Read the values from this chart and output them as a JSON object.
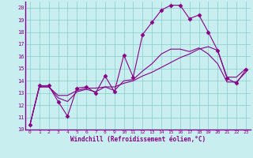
{
  "xlabel": "Windchill (Refroidissement éolien,°C)",
  "bg_color": "#c8eef0",
  "line_color": "#880088",
  "grid_color": "#88cccc",
  "border_color": "#880088",
  "xlim": [
    -0.5,
    23.5
  ],
  "ylim": [
    10,
    20.5
  ],
  "xticks": [
    0,
    1,
    2,
    3,
    4,
    5,
    6,
    7,
    8,
    9,
    10,
    11,
    12,
    13,
    14,
    15,
    16,
    17,
    18,
    19,
    20,
    21,
    22,
    23
  ],
  "yticks": [
    10,
    11,
    12,
    13,
    14,
    15,
    16,
    17,
    18,
    19,
    20
  ],
  "series": [
    {
      "x": [
        0,
        1,
        2,
        3,
        4,
        5,
        6,
        7,
        8,
        9,
        10,
        11,
        12,
        13,
        14,
        15,
        16,
        17,
        18,
        19,
        20,
        21,
        22,
        23
      ],
      "y": [
        10.4,
        13.6,
        13.6,
        12.3,
        11.1,
        13.4,
        13.5,
        13.0,
        14.4,
        13.1,
        16.1,
        14.3,
        17.8,
        18.8,
        19.8,
        20.2,
        20.2,
        19.1,
        19.4,
        18.0,
        16.5,
        14.2,
        13.8,
        14.9
      ],
      "marker": "D",
      "markersize": 2.5
    },
    {
      "x": [
        0,
        1,
        2,
        3,
        4,
        5,
        6,
        7,
        8,
        9,
        10,
        11,
        12,
        13,
        14,
        15,
        16,
        17,
        18,
        19,
        20,
        21,
        22,
        23
      ],
      "y": [
        10.4,
        13.5,
        13.5,
        12.8,
        12.8,
        13.2,
        13.4,
        13.4,
        13.5,
        13.5,
        13.8,
        14.0,
        14.4,
        14.7,
        15.1,
        15.5,
        15.9,
        16.2,
        16.6,
        16.8,
        16.5,
        14.3,
        14.3,
        15.0
      ],
      "marker": null,
      "markersize": 0
    },
    {
      "x": [
        0,
        1,
        2,
        3,
        4,
        5,
        6,
        7,
        8,
        9,
        10,
        11,
        12,
        13,
        14,
        15,
        16,
        17,
        18,
        19,
        20,
        21,
        22,
        23
      ],
      "y": [
        10.4,
        13.5,
        13.5,
        12.6,
        12.3,
        13.1,
        13.3,
        13.1,
        13.5,
        13.2,
        14.0,
        14.1,
        14.8,
        15.4,
        16.2,
        16.6,
        16.6,
        16.4,
        16.7,
        16.2,
        15.4,
        13.9,
        13.9,
        14.7
      ],
      "marker": null,
      "markersize": 0
    }
  ]
}
